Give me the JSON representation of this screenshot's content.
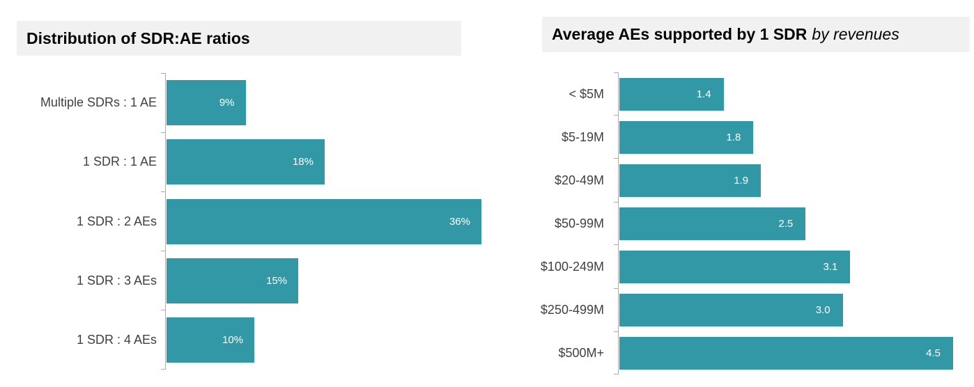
{
  "page": {
    "background": "#FFFFFF"
  },
  "colors": {
    "bar_teal": "#3398A6",
    "title_band_bg": "#F1F1F1",
    "axis_gray": "#ABABAB",
    "category_text": "#3F3F3F",
    "value_text": "#FFFFFF",
    "title_text": "#050505"
  },
  "chart_data": [
    {
      "type": "bar",
      "orientation": "horizontal",
      "title": "Distribution of SDR:AE ratios",
      "title_italic": "",
      "categories": [
        "Multiple SDRs : 1 AE",
        "1 SDR : 1 AE",
        "1 SDR : 2 AEs",
        "1 SDR : 3 AEs",
        "1 SDR : 4 AEs"
      ],
      "values": [
        9,
        18,
        36,
        15,
        10
      ],
      "value_labels": [
        "9%",
        "18%",
        "36%",
        "15%",
        "10%"
      ],
      "unit": "percent",
      "xlim": [
        0,
        36
      ],
      "xmax": 36,
      "bar_color": "#3398A6",
      "value_label_position": "inside-end",
      "grid": false,
      "legend": false
    },
    {
      "type": "bar",
      "orientation": "horizontal",
      "title": "Average AEs supported by 1 SDR",
      "title_italic": "by revenues",
      "categories": [
        "< $5M",
        "$5-19M",
        "$20-49M",
        "$50-99M",
        "$100-249M",
        "$250-499M",
        "$500M+"
      ],
      "values": [
        1.4,
        1.8,
        1.9,
        2.5,
        3.1,
        3.0,
        4.5
      ],
      "value_labels": [
        "1.4",
        "1.8",
        "1.9",
        "2.5",
        "3.1",
        "3.0",
        "4.5"
      ],
      "unit": "AEs per SDR",
      "xlim": [
        0,
        4.5
      ],
      "xmax": 4.5,
      "bar_color": "#3398A6",
      "value_label_position": "inside-end",
      "grid": false,
      "legend": false
    }
  ]
}
